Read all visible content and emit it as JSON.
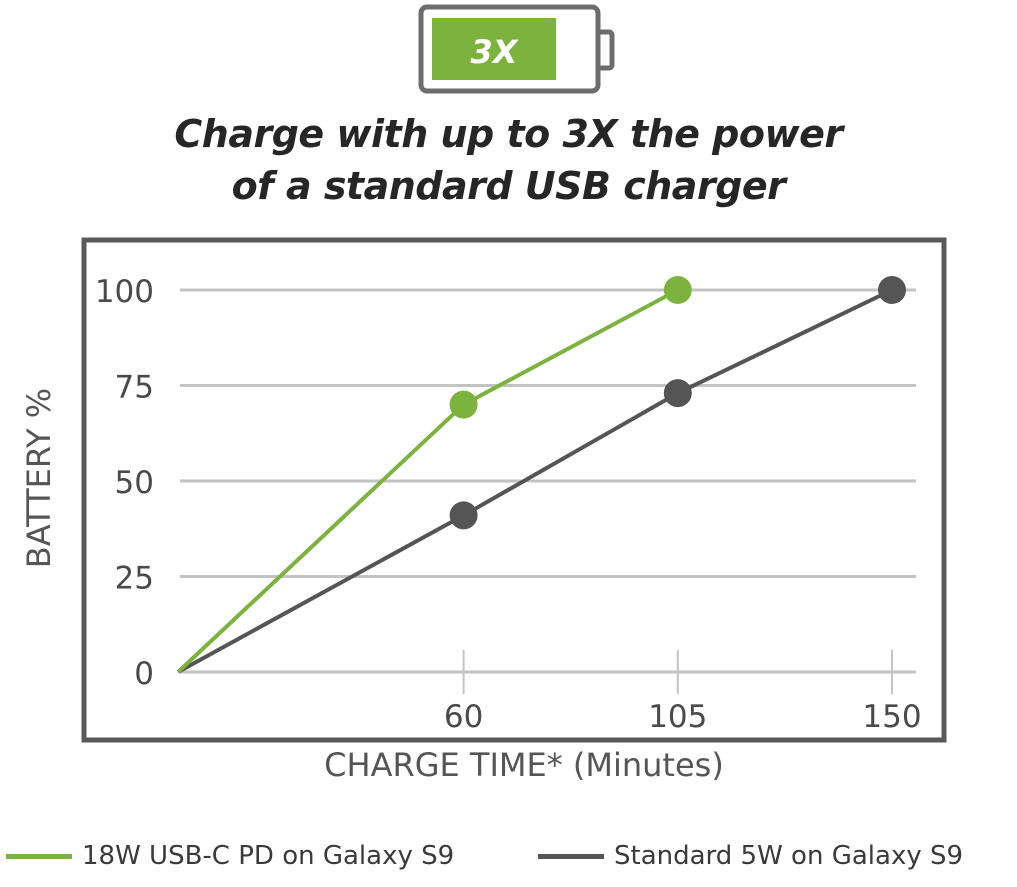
{
  "badge": {
    "label": "3X",
    "color": "#7cb33e"
  },
  "headline": {
    "line1": "Charge with up to 3X the power",
    "line2": "of a standard USB charger"
  },
  "colors": {
    "green": "#7cb33e",
    "gray": "#555555",
    "frame": "#595959",
    "grid": "#c3c3c3"
  },
  "chart_data": {
    "type": "line",
    "xlabel": "CHARGE TIME* (Minutes)",
    "ylabel": "BATTERY %",
    "x_ticks": [
      60,
      105,
      150
    ],
    "y_ticks": [
      0,
      25,
      50,
      75,
      100
    ],
    "xlim": [
      0,
      150
    ],
    "ylim": [
      0,
      100
    ],
    "grid": true,
    "legend_position": "bottom",
    "series": [
      {
        "name": "18W USB-C PD on Galaxy S9",
        "color": "#7cb33e",
        "points": [
          [
            0,
            0
          ],
          [
            60,
            70
          ],
          [
            105,
            100
          ]
        ]
      },
      {
        "name": "Standard 5W on Galaxy S9",
        "color": "#555555",
        "points": [
          [
            0,
            0
          ],
          [
            60,
            41
          ],
          [
            105,
            73
          ],
          [
            150,
            100
          ]
        ]
      }
    ]
  }
}
